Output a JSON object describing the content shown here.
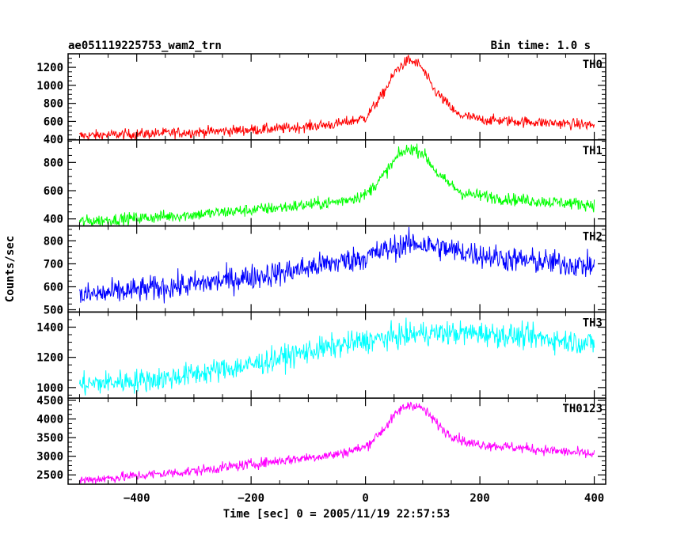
{
  "title_left": "ae051119225753_wam2_trn",
  "title_right": "Bin time: 1.0 s",
  "xlabel": "Time [sec] 0 = 2005/11/19 22:57:53",
  "ylabel": "Counts/sec",
  "chart_data": {
    "type": "line",
    "xlim": [
      -520,
      420
    ],
    "xticks": [
      -400,
      -200,
      0,
      200,
      400
    ],
    "xtick_labels": [
      "−400",
      "−200",
      "0",
      "200",
      "400"
    ],
    "x_range": [
      -500,
      400
    ],
    "panels": [
      {
        "name": "TH0",
        "color": "#ff0000",
        "ylim": [
          395,
          1350
        ],
        "yticks": [
          400,
          600,
          800,
          1000,
          1200
        ],
        "yticks_labels": [
          "400",
          "600",
          "800",
          "1000",
          "1200"
        ],
        "profile": [
          [
            -500,
            440
          ],
          [
            -300,
            480
          ],
          [
            -150,
            520
          ],
          [
            -50,
            570
          ],
          [
            0,
            640
          ],
          [
            30,
            900
          ],
          [
            55,
            1180
          ],
          [
            75,
            1280
          ],
          [
            95,
            1230
          ],
          [
            120,
            950
          ],
          [
            160,
            680
          ],
          [
            200,
            620
          ],
          [
            300,
            590
          ],
          [
            400,
            560
          ]
        ],
        "noise": 30
      },
      {
        "name": "TH1",
        "color": "#00ff00",
        "ylim": [
          350,
          960
        ],
        "yticks": [
          400,
          600,
          800
        ],
        "yticks_labels": [
          "400",
          "600",
          "800"
        ],
        "profile": [
          [
            -500,
            380
          ],
          [
            -300,
            430
          ],
          [
            -150,
            480
          ],
          [
            -50,
            520
          ],
          [
            0,
            570
          ],
          [
            30,
            700
          ],
          [
            60,
            860
          ],
          [
            80,
            900
          ],
          [
            100,
            870
          ],
          [
            130,
            700
          ],
          [
            170,
            580
          ],
          [
            250,
            540
          ],
          [
            400,
            500
          ]
        ],
        "noise": 22
      },
      {
        "name": "TH2",
        "color": "#0000ff",
        "ylim": [
          490,
          865
        ],
        "yticks": [
          500,
          600,
          700,
          800
        ],
        "yticks_labels": [
          "500",
          "600",
          "700",
          "800"
        ],
        "profile": [
          [
            -500,
            560
          ],
          [
            -300,
            610
          ],
          [
            -150,
            660
          ],
          [
            0,
            730
          ],
          [
            60,
            780
          ],
          [
            90,
            790
          ],
          [
            150,
            760
          ],
          [
            250,
            720
          ],
          [
            400,
            690
          ]
        ],
        "noise": 28
      },
      {
        "name": "TH3",
        "color": "#00ffff",
        "ylim": [
          930,
          1500
        ],
        "yticks": [
          1000,
          1200,
          1400
        ],
        "yticks_labels": [
          "1000",
          "1200",
          "1400"
        ],
        "profile": [
          [
            -500,
            1020
          ],
          [
            -350,
            1060
          ],
          [
            -200,
            1150
          ],
          [
            -100,
            1240
          ],
          [
            0,
            1310
          ],
          [
            100,
            1360
          ],
          [
            200,
            1360
          ],
          [
            300,
            1330
          ],
          [
            400,
            1290
          ]
        ],
        "noise": 40
      },
      {
        "name": "TH0123",
        "color": "#ff00ff",
        "ylim": [
          2250,
          4560
        ],
        "yticks": [
          2500,
          3000,
          3500,
          4000,
          4500
        ],
        "yticks_labels": [
          "2500",
          "3000",
          "3500",
          "4000",
          "4500"
        ],
        "profile": [
          [
            -500,
            2350
          ],
          [
            -300,
            2600
          ],
          [
            -150,
            2880
          ],
          [
            -50,
            3050
          ],
          [
            0,
            3250
          ],
          [
            30,
            3700
          ],
          [
            60,
            4250
          ],
          [
            80,
            4400
          ],
          [
            100,
            4280
          ],
          [
            140,
            3650
          ],
          [
            180,
            3350
          ],
          [
            250,
            3250
          ],
          [
            400,
            3050
          ]
        ],
        "noise": 70
      }
    ]
  }
}
